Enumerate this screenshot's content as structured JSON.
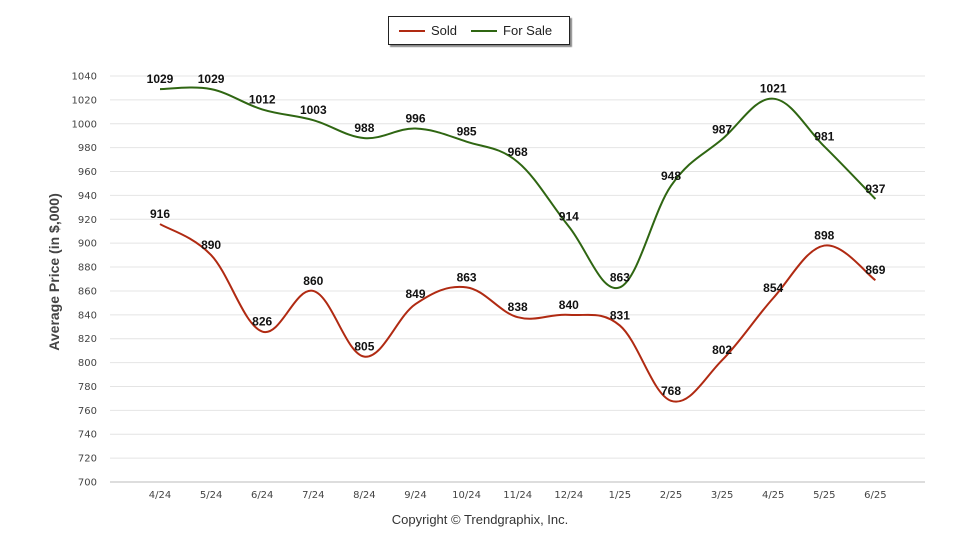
{
  "chart_data": {
    "type": "line",
    "categories": [
      "4/24",
      "5/24",
      "6/24",
      "7/24",
      "8/24",
      "9/24",
      "10/24",
      "11/24",
      "12/24",
      "1/25",
      "2/25",
      "3/25",
      "4/25",
      "5/25",
      "6/25"
    ],
    "series": [
      {
        "name": "Sold",
        "color": "#b02a12",
        "values": [
          916,
          890,
          826,
          860,
          805,
          849,
          863,
          838,
          840,
          831,
          768,
          802,
          854,
          898,
          869
        ]
      },
      {
        "name": "For Sale",
        "color": "#2f6612",
        "values": [
          1029,
          1029,
          1012,
          1003,
          988,
          996,
          985,
          968,
          914,
          863,
          948,
          987,
          1021,
          981,
          937
        ]
      }
    ],
    "ylabel": "Average Price (in $,000)",
    "ylim": [
      700,
      1040
    ],
    "yticks": [
      700,
      720,
      740,
      760,
      780,
      800,
      820,
      840,
      860,
      880,
      900,
      920,
      940,
      960,
      980,
      1000,
      1020,
      1040
    ],
    "grid": true,
    "legend": "top-center"
  },
  "footer": {
    "copyright": "Copyright © Trendgraphix, Inc."
  }
}
